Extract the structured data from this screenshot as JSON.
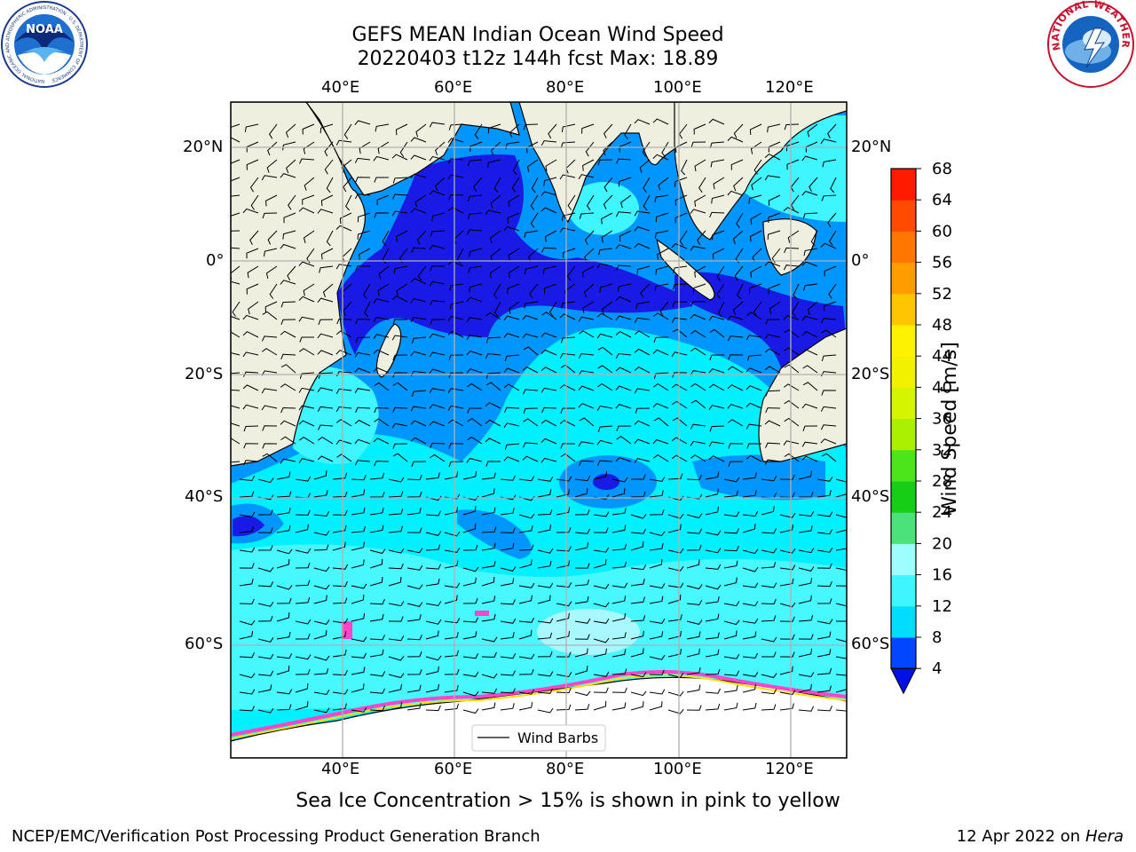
{
  "header": {
    "title_line1": "GEFS MEAN Indian Ocean Wind Speed",
    "title_line2": "20220403 t12z 144h fcst   Max: 18.89"
  },
  "logos": {
    "left": {
      "name": "NOAA",
      "ring_text": "NATIONAL OCEANIC AND ATMOSPHERIC ADMINISTRATION · U.S. DEPARTMENT OF COMMERCE"
    },
    "right": {
      "name": "NATIONAL WEATHER SERVICE"
    }
  },
  "map": {
    "lon_labels": [
      "40°E",
      "60°E",
      "80°E",
      "100°E",
      "120°E"
    ],
    "lat_labels": [
      "20°N",
      "0°",
      "20°S",
      "40°S",
      "60°S"
    ],
    "legend_label": "Wind Barbs",
    "land_color": "#efefdf",
    "coast_color": "#000000",
    "grid_color": "#b0b0b0"
  },
  "colorbar": {
    "label": "Wind Speed [m/s]",
    "ticks": [
      "4",
      "8",
      "12",
      "16",
      "20",
      "24",
      "28",
      "32",
      "36",
      "40",
      "44",
      "48",
      "52",
      "56",
      "60",
      "64",
      "68"
    ],
    "colors": [
      "#0047ff",
      "#00ddff",
      "#3ff5ff",
      "#9dfdff",
      "#4ce27a",
      "#16ce16",
      "#4ce41a",
      "#aaf000",
      "#d4f400",
      "#f2f200",
      "#fff200",
      "#ffc600",
      "#ff9c00",
      "#ff7700",
      "#ff4a00",
      "#ff1a00"
    ],
    "under_color": "#0010e6"
  },
  "map_colors": {
    "wind_4_8": "#0096ff",
    "wind_lt_4": "#1a1ae6",
    "wind_8_12": "#00f0ff",
    "wind_12_16": "#47f8ff",
    "wind_16_20": "#aaf8ff",
    "ice": "#ff44cc"
  },
  "footer": {
    "note": "Sea Ice Concentration > 15% is shown in pink to yellow",
    "credit": "NCEP/EMC/Verification Post Processing Product Generation Branch",
    "date_prefix": "12 Apr 2022 on",
    "machine": "Hera"
  }
}
